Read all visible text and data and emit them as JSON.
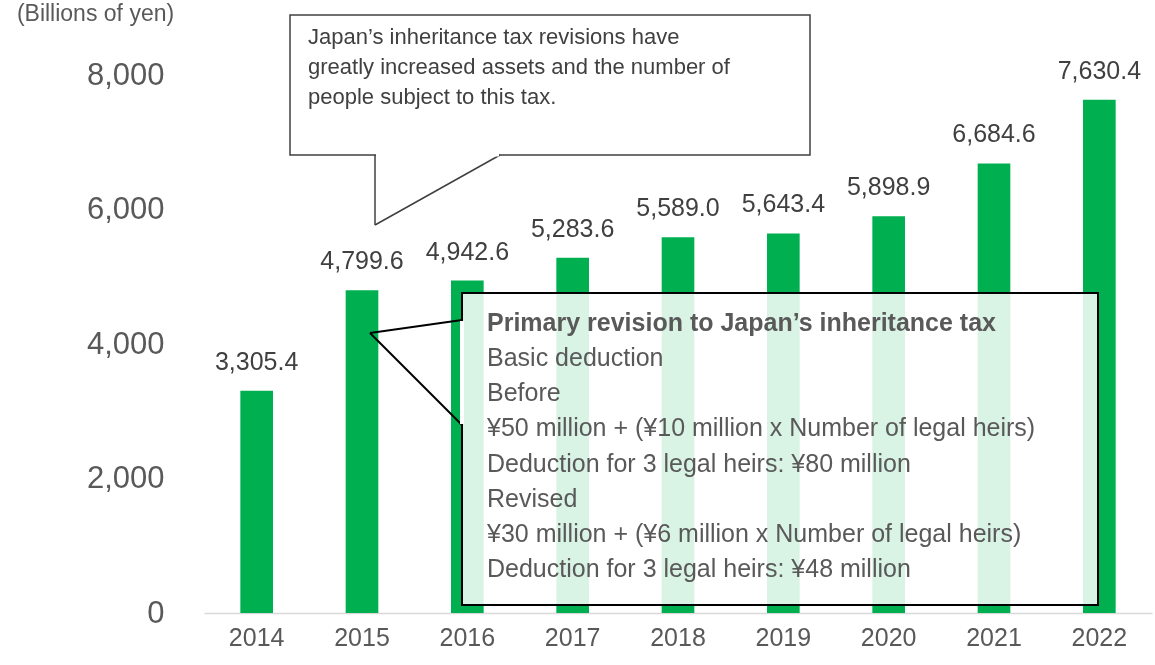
{
  "chart_data": {
    "type": "bar",
    "ylabel": "(Billions of yen)",
    "categories": [
      "2014",
      "2015",
      "2016",
      "2017",
      "2018",
      "2019",
      "2020",
      "2021",
      "2022"
    ],
    "values": [
      3305.4,
      4799.6,
      4942.6,
      5283.6,
      5589.0,
      5643.4,
      5898.9,
      6684.6,
      7630.4
    ],
    "value_labels": [
      "3,305.4",
      "4,799.6",
      "4,942.6",
      "5,283.6",
      "5,589.0",
      "5,643.4",
      "5,898.9",
      "6,684.6",
      "7,630.4"
    ],
    "color": "#00b050",
    "ylim": [
      0,
      8000
    ],
    "yticks": [
      {
        "value": 0,
        "label": "0"
      },
      {
        "value": 2000,
        "label": "2,000"
      },
      {
        "value": 4000,
        "label": "4,000"
      },
      {
        "value": 6000,
        "label": "6,000"
      },
      {
        "value": 8000,
        "label": "8,000"
      }
    ],
    "grid": false,
    "annotations": [
      "Japan’s inheritance tax revisions have greatly increased assets and the number of people subject to this tax.",
      "Primary revision to Japan’s inheritance tax",
      "Basic deduction",
      "Before",
      "¥50 million + (¥10 million x Number of legal heirs)",
      "Deduction for 3 legal heirs: ¥80 million",
      "Revised",
      "¥30 million + (¥6 million x Number of legal heirs)",
      "Deduction for 3 legal heirs: ¥48 million"
    ]
  }
}
